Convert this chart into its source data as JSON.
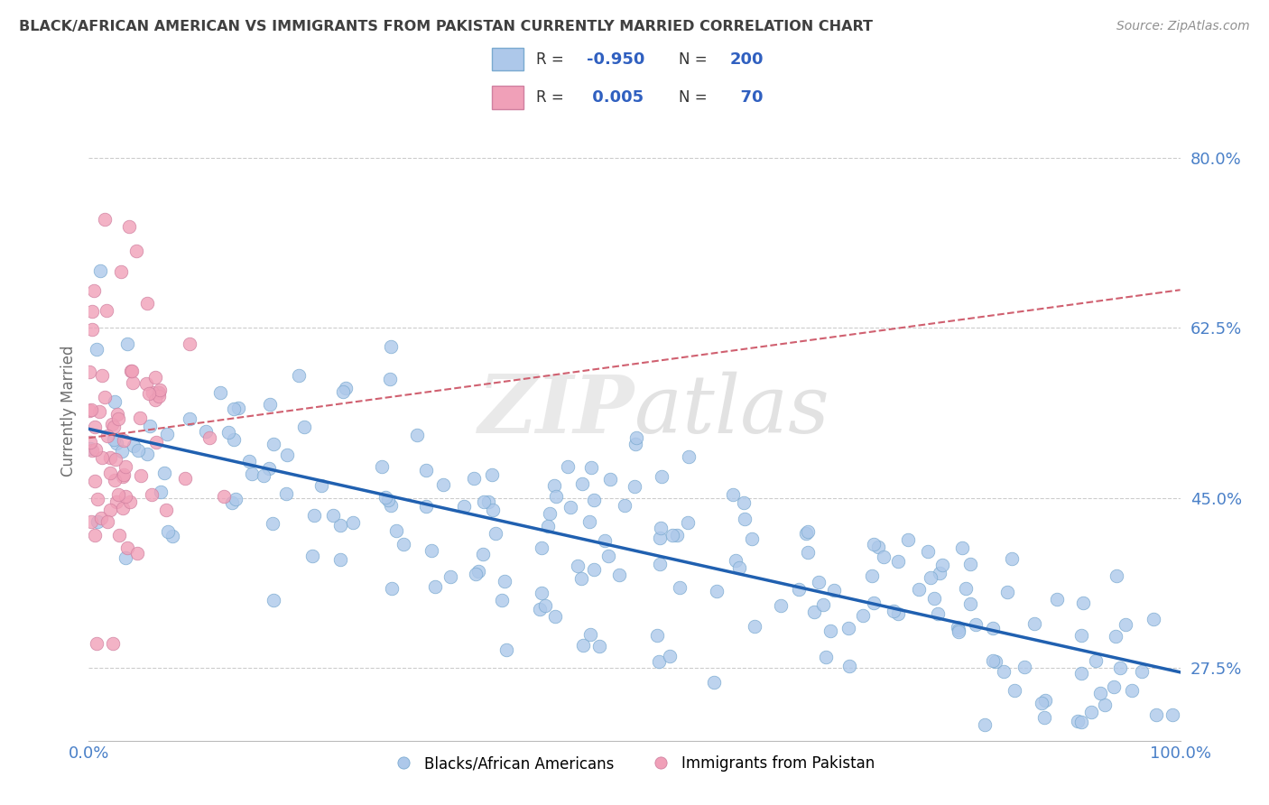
{
  "title": "BLACK/AFRICAN AMERICAN VS IMMIGRANTS FROM PAKISTAN CURRENTLY MARRIED CORRELATION CHART",
  "source": "Source: ZipAtlas.com",
  "ylabel": "Currently Married",
  "blue_R": -0.95,
  "blue_N": 200,
  "pink_R": 0.005,
  "pink_N": 70,
  "blue_color": "#adc8ea",
  "blue_line_color": "#2060b0",
  "pink_color": "#f0a0b8",
  "pink_line_color": "#d06070",
  "blue_marker_edge": "#7aaad0",
  "pink_marker_edge": "#d080a0",
  "watermark_zip": "ZIP",
  "watermark_atlas": "atlas",
  "xlim": [
    0.0,
    1.0
  ],
  "ylim": [
    0.2,
    0.88
  ],
  "yticks": [
    0.275,
    0.45,
    0.625,
    0.8
  ],
  "ytick_labels": [
    "27.5%",
    "45.0%",
    "62.5%",
    "80.0%"
  ],
  "xticks": [
    0.0,
    1.0
  ],
  "xtick_labels": [
    "0.0%",
    "100.0%"
  ],
  "legend_blue_label": "Blacks/African Americans",
  "legend_pink_label": "Immigrants from Pakistan",
  "background_color": "#ffffff",
  "grid_color": "#cccccc",
  "title_color": "#404040",
  "source_color": "#909090",
  "blue_line_y_start": 0.52,
  "blue_line_y_end": 0.275,
  "pink_line_y": 0.495
}
